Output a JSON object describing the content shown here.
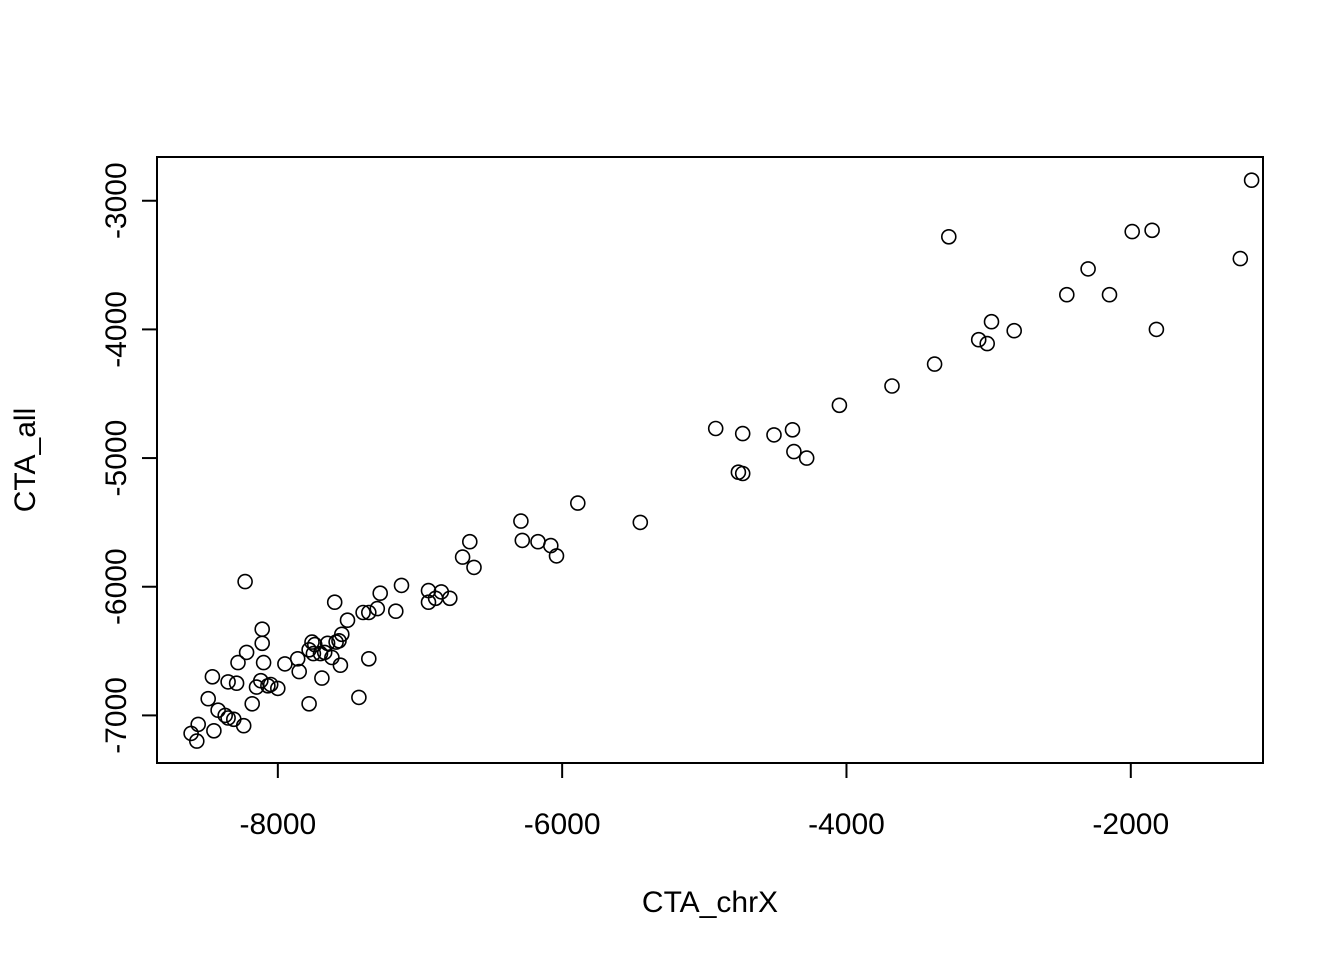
{
  "chart_data": {
    "type": "scatter",
    "xlabel": "CTA_chrX",
    "ylabel": "CTA_all",
    "xlim": [
      -8850,
      -1070
    ],
    "ylim": [
      -7370,
      -2660
    ],
    "xticks": [
      -8000,
      -6000,
      -4000,
      -2000
    ],
    "yticks": [
      -7000,
      -6000,
      -5000,
      -4000,
      -3000
    ],
    "xtick_labels": [
      "-8000",
      "-6000",
      "-4000",
      "-2000"
    ],
    "ytick_labels": [
      "-7000",
      "-6000",
      "-5000",
      "-4000",
      "-3000"
    ],
    "grid": false,
    "marker": "open-circle",
    "point_color": "#000000",
    "points": [
      [
        -1150,
        -2840
      ],
      [
        -1230,
        -3450
      ],
      [
        -1850,
        -3230
      ],
      [
        -1990,
        -3240
      ],
      [
        -1820,
        -4000
      ],
      [
        -2150,
        -3730
      ],
      [
        -2300,
        -3530
      ],
      [
        -2450,
        -3730
      ],
      [
        -3280,
        -3280
      ],
      [
        -2820,
        -4010
      ],
      [
        -2980,
        -3940
      ],
      [
        -3070,
        -4080
      ],
      [
        -3010,
        -4110
      ],
      [
        -3380,
        -4270
      ],
      [
        -3680,
        -4440
      ],
      [
        -4050,
        -4590
      ],
      [
        -4920,
        -4770
      ],
      [
        -4730,
        -4810
      ],
      [
        -4510,
        -4820
      ],
      [
        -4380,
        -4780
      ],
      [
        -4370,
        -4950
      ],
      [
        -4280,
        -5000
      ],
      [
        -4760,
        -5110
      ],
      [
        -4730,
        -5120
      ],
      [
        -5890,
        -5350
      ],
      [
        -5450,
        -5500
      ],
      [
        -6290,
        -5490
      ],
      [
        -6280,
        -5640
      ],
      [
        -6170,
        -5650
      ],
      [
        -6080,
        -5680
      ],
      [
        -6040,
        -5760
      ],
      [
        -6650,
        -5650
      ],
      [
        -6700,
        -5770
      ],
      [
        -6620,
        -5850
      ],
      [
        -6940,
        -6030
      ],
      [
        -6890,
        -6090
      ],
      [
        -6940,
        -6120
      ],
      [
        -6850,
        -6040
      ],
      [
        -6790,
        -6090
      ],
      [
        -7130,
        -5990
      ],
      [
        -7280,
        -6050
      ],
      [
        -7300,
        -6170
      ],
      [
        -7170,
        -6190
      ],
      [
        -7360,
        -6200
      ],
      [
        -7400,
        -6200
      ],
      [
        -7510,
        -6260
      ],
      [
        -7600,
        -6120
      ],
      [
        -7550,
        -6370
      ],
      [
        -7570,
        -6420
      ],
      [
        -7590,
        -6430
      ],
      [
        -7650,
        -6440
      ],
      [
        -7620,
        -6550
      ],
      [
        -7670,
        -6510
      ],
      [
        -7700,
        -6520
      ],
      [
        -7740,
        -6450
      ],
      [
        -7760,
        -6430
      ],
      [
        -7780,
        -6490
      ],
      [
        -7750,
        -6520
      ],
      [
        -7560,
        -6610
      ],
      [
        -7360,
        -6560
      ],
      [
        -7690,
        -6710
      ],
      [
        -7860,
        -6560
      ],
      [
        -7850,
        -6660
      ],
      [
        -7950,
        -6600
      ],
      [
        -7780,
        -6910
      ],
      [
        -7430,
        -6860
      ],
      [
        -8230,
        -5960
      ],
      [
        -8110,
        -6330
      ],
      [
        -8110,
        -6440
      ],
      [
        -8220,
        -6510
      ],
      [
        -8280,
        -6590
      ],
      [
        -8100,
        -6590
      ],
      [
        -8460,
        -6700
      ],
      [
        -8350,
        -6740
      ],
      [
        -8290,
        -6750
      ],
      [
        -8120,
        -6730
      ],
      [
        -8150,
        -6780
      ],
      [
        -8070,
        -6770
      ],
      [
        -8050,
        -6760
      ],
      [
        -8000,
        -6790
      ],
      [
        -8180,
        -6910
      ],
      [
        -8490,
        -6870
      ],
      [
        -8420,
        -6960
      ],
      [
        -8370,
        -7000
      ],
      [
        -8350,
        -7020
      ],
      [
        -8310,
        -7030
      ],
      [
        -8240,
        -7080
      ],
      [
        -8560,
        -7070
      ],
      [
        -8450,
        -7120
      ],
      [
        -8610,
        -7140
      ],
      [
        -8570,
        -7200
      ]
    ]
  }
}
